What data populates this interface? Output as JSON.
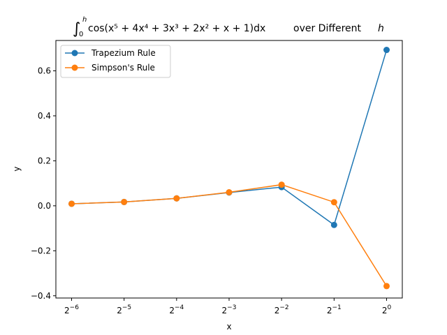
{
  "chart_data": {
    "type": "line",
    "title": "∫₀ʰ cos(x⁵ + 4x⁴ + 3x³ + 2x² + x + 1)dx over Different h",
    "title_parts": {
      "integral": "∫",
      "upper": "h",
      "lower": "0",
      "body": "cos(x⁵ + 4x⁴ + 3x³ + 2x² + x + 1)dx",
      "suffix": "over Different",
      "var": "h"
    },
    "xlabel": "x",
    "ylabel": "y",
    "x_scale": "log2",
    "x": [
      0.015625,
      0.03125,
      0.0625,
      0.125,
      0.25,
      0.5,
      1
    ],
    "x_tick_labels": [
      {
        "base": "2",
        "exp": "−6"
      },
      {
        "base": "2",
        "exp": "−5"
      },
      {
        "base": "2",
        "exp": "−4"
      },
      {
        "base": "2",
        "exp": "−3"
      },
      {
        "base": "2",
        "exp": "−2"
      },
      {
        "base": "2",
        "exp": "−1"
      },
      {
        "base": "2",
        "exp": "0"
      }
    ],
    "y_ticks": [
      -0.4,
      -0.2,
      0.0,
      0.2,
      0.4,
      0.6
    ],
    "y_tick_labels": [
      "−0.4",
      "−0.2",
      "0.0",
      "0.2",
      "0.4",
      "0.6"
    ],
    "ylim": [
      -0.41,
      0.735
    ],
    "grid": false,
    "legend_position": "top-left",
    "series": [
      {
        "name": "Trapezium Rule",
        "color": "#1f77b4",
        "values": [
          0.009,
          0.017,
          0.033,
          0.059,
          0.083,
          -0.085,
          0.693
        ]
      },
      {
        "name": "Simpson's Rule",
        "color": "#ff7f0e",
        "values": [
          0.009,
          0.017,
          0.033,
          0.06,
          0.094,
          0.016,
          -0.357
        ]
      }
    ]
  }
}
